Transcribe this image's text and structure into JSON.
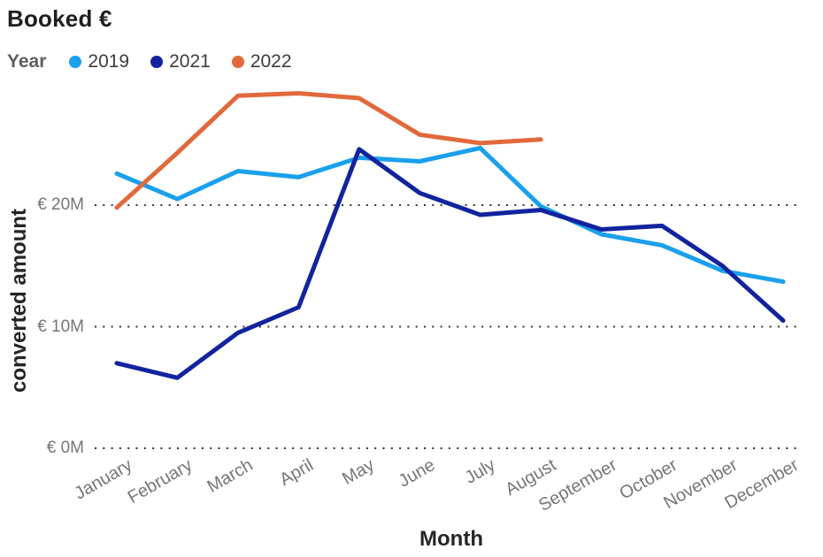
{
  "title": "Booked €",
  "legend": {
    "title": "Year",
    "items": [
      {
        "label": "2019",
        "color": "#1AA0EC"
      },
      {
        "label": "2021",
        "color": "#12239E"
      },
      {
        "label": "2022",
        "color": "#E2693B"
      }
    ]
  },
  "colors": {
    "grid": "#333333",
    "tick_text": "#767676",
    "axis_title_text": "#252525"
  },
  "chart_data": {
    "type": "line",
    "title": "Booked €",
    "xlabel": "Month",
    "ylabel": "converted amount",
    "x": [
      "January",
      "February",
      "March",
      "April",
      "May",
      "June",
      "July",
      "August",
      "September",
      "October",
      "November",
      "December"
    ],
    "y_ticks": [
      {
        "label": "€ 0M",
        "value": 0
      },
      {
        "label": "€ 10M",
        "value": 10
      },
      {
        "label": "€ 20M",
        "value": 20
      }
    ],
    "ylim": [
      0,
      30
    ],
    "unit": "million EUR",
    "grid": "horizontal-dotted",
    "legend_position": "top-left",
    "series": [
      {
        "name": "2019",
        "color": "#1AA0EC",
        "values": [
          22.6,
          20.5,
          22.8,
          22.3,
          23.9,
          23.6,
          24.7,
          19.9,
          17.6,
          16.7,
          14.6,
          13.7
        ]
      },
      {
        "name": "2021",
        "color": "#12239E",
        "values": [
          7.0,
          5.8,
          9.5,
          11.6,
          24.6,
          21.0,
          19.2,
          19.6,
          18.0,
          18.3,
          15.0,
          10.5
        ]
      },
      {
        "name": "2022",
        "color": "#E2693B",
        "values": [
          19.8,
          24.3,
          29.0,
          29.2,
          28.8,
          25.8,
          25.1,
          25.4,
          null,
          null,
          null,
          null
        ]
      }
    ]
  }
}
